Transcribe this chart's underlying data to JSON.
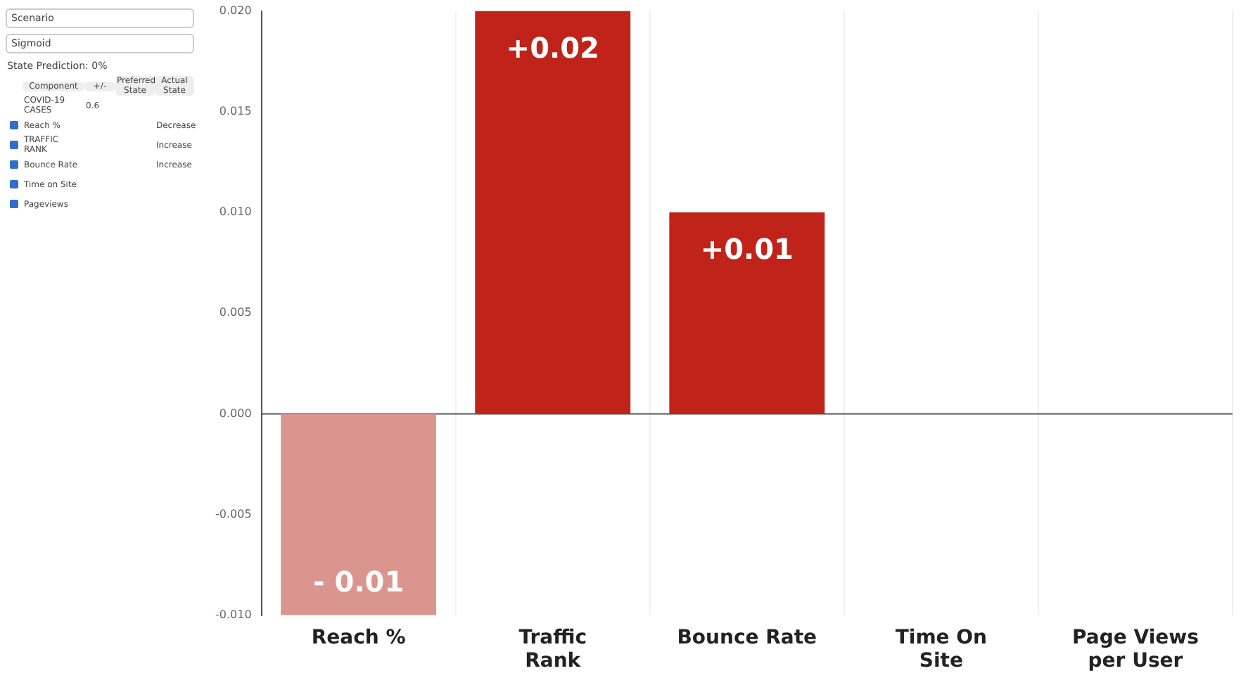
{
  "chart_data": [
    {
      "type": "other",
      "annotations": [
        "Scenario",
        "Sigmoid",
        "State Prediction: 0%",
        "Component",
        "+/-",
        "Preferred State",
        "Actual State",
        "COVID-19 CASES",
        "0.6",
        "Reach %",
        "Decrease",
        "TRAFFIC RANK",
        "Increase",
        "Bounce Rate",
        "Increase",
        "Time on Site",
        "Pageviews"
      ]
    },
    {
      "type": "bar",
      "categories": [
        "Reach %",
        "Traffic Rank",
        "Bounce Rate",
        "Time On Site",
        "Page Views per User"
      ],
      "values": [
        -0.01,
        0.02,
        0.01,
        0,
        0
      ],
      "colors": [
        "#d9958e",
        "#c0231a",
        "#c0231a",
        "#c0231a",
        "#c0231a"
      ],
      "value_labels": [
        "- 0.01",
        "+0.02",
        "+0.01",
        null,
        null
      ],
      "ylim": [
        -0.01,
        0.02
      ],
      "yticks": [
        {
          "value": -0.01,
          "label": "-0.010"
        },
        {
          "value": -0.005,
          "label": "-0.005"
        },
        {
          "value": 0,
          "label": "0.000"
        },
        {
          "value": 0.005,
          "label": "0.005"
        },
        {
          "value": 0.01,
          "label": "0.010"
        },
        {
          "value": 0.015,
          "label": "0.015"
        },
        {
          "value": 0.02,
          "label": "0.020"
        }
      ],
      "grid": "x"
    }
  ]
}
